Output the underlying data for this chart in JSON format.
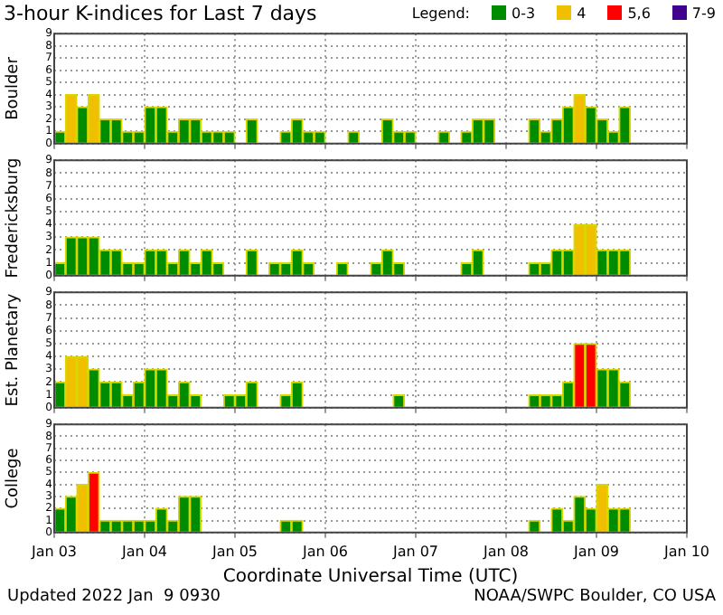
{
  "chart_data": [
    {
      "type": "bar",
      "title": "3-hour K-indices for Last 7 days",
      "ylabel": "Boulder",
      "legend": "top right",
      "legend_title": "Legend:",
      "tick_labels": "y",
      "grid": true,
      "x": [
        "2022-01-03T01:30",
        "2022-01-03T04:30",
        "2022-01-03T07:30",
        "2022-01-03T10:30",
        "2022-01-03T13:30",
        "2022-01-03T16:30",
        "2022-01-03T19:30",
        "2022-01-03T22:30",
        "2022-01-04T01:30",
        "2022-01-04T04:30",
        "2022-01-04T07:30",
        "2022-01-04T10:30",
        "2022-01-04T13:30",
        "2022-01-04T16:30",
        "2022-01-04T19:30",
        "2022-01-04T22:30",
        "2022-01-05T01:30",
        "2022-01-05T04:30",
        "2022-01-05T07:30",
        "2022-01-05T10:30",
        "2022-01-05T13:30",
        "2022-01-05T16:30",
        "2022-01-05T19:30",
        "2022-01-05T22:30",
        "2022-01-06T01:30",
        "2022-01-06T04:30",
        "2022-01-06T07:30",
        "2022-01-06T10:30",
        "2022-01-06T13:30",
        "2022-01-06T16:30",
        "2022-01-06T19:30",
        "2022-01-06T22:30",
        "2022-01-07T01:30",
        "2022-01-07T04:30",
        "2022-01-07T07:30",
        "2022-01-07T10:30",
        "2022-01-07T13:30",
        "2022-01-07T16:30",
        "2022-01-07T19:30",
        "2022-01-07T22:30",
        "2022-01-08T01:30",
        "2022-01-08T04:30",
        "2022-01-08T07:30",
        "2022-01-08T10:30",
        "2022-01-08T13:30",
        "2022-01-08T16:30",
        "2022-01-08T19:30",
        "2022-01-08T22:30",
        "2022-01-09T01:30",
        "2022-01-09T04:30",
        "2022-01-09T07:30"
      ],
      "series": [
        {
          "name": "0-3",
          "color": "#008c00",
          "values": [
            1,
            null,
            3,
            null,
            2,
            2,
            1,
            1,
            3,
            3,
            1,
            2,
            2,
            1,
            1,
            1,
            0,
            2,
            0,
            0,
            1,
            2,
            1,
            1,
            0,
            0,
            1,
            0,
            0,
            2,
            1,
            1,
            0,
            0,
            1,
            0,
            1,
            2,
            2,
            0,
            0,
            0,
            2,
            1,
            2,
            3,
            null,
            3,
            2,
            1,
            3
          ]
        },
        {
          "name": "4",
          "color": "#f0c000",
          "x": [
            "2022-01-03T04:30",
            "2022-01-03T10:30",
            "2022-01-08T19:30"
          ],
          "values": [
            4,
            4,
            4
          ]
        },
        {
          "name": "5,6",
          "color": "#ff0000",
          "values": [
            null,
            null,
            null,
            null,
            null,
            null,
            null,
            null,
            null,
            null,
            null,
            null,
            null,
            null,
            null,
            null,
            null,
            null,
            null,
            null,
            null,
            null,
            null,
            null,
            null,
            null,
            null,
            null,
            null,
            null,
            null,
            null,
            null,
            null,
            null,
            null,
            null,
            null,
            null,
            null,
            null,
            null,
            null,
            null,
            null,
            null,
            null,
            null,
            null,
            null,
            null
          ]
        },
        {
          "name": "7-9",
          "color": "#400090",
          "values": [
            null,
            null,
            null,
            null,
            null,
            null,
            null,
            null,
            null,
            null,
            null,
            null,
            null,
            null,
            null,
            null,
            null,
            null,
            null,
            null,
            null,
            null,
            null,
            null,
            null,
            null,
            null,
            null,
            null,
            null,
            null,
            null,
            null,
            null,
            null,
            null,
            null,
            null,
            null,
            null,
            null,
            null,
            null,
            null,
            null,
            null,
            null,
            null,
            null,
            null,
            null
          ]
        }
      ],
      "xlim": [
        "2022-01-03T00:00",
        "2022-01-10T00:00"
      ],
      "xticks": [
        {
          "value": "2022-01-03T00:00",
          "label": null
        },
        {
          "value": "2022-01-04T00:00",
          "label": null
        },
        {
          "value": "2022-01-05T00:00",
          "label": null
        },
        {
          "value": "2022-01-06T00:00",
          "label": null
        },
        {
          "value": "2022-01-07T00:00",
          "label": null
        },
        {
          "value": "2022-01-08T00:00",
          "label": null
        },
        {
          "value": "2022-01-09T00:00",
          "label": null
        },
        {
          "value": "2022-01-10T00:00",
          "label": null
        }
      ],
      "ylim": [
        0,
        9
      ],
      "yticks": [
        0,
        1,
        2,
        3,
        4,
        5,
        6,
        7,
        8,
        9
      ]
    },
    {
      "type": "bar",
      "ylabel": "Fredericksburg",
      "tick_labels": "y",
      "grid": true,
      "x": [
        "2022-01-03T01:30",
        "2022-01-03T04:30",
        "2022-01-03T07:30",
        "2022-01-03T10:30",
        "2022-01-03T13:30",
        "2022-01-03T16:30",
        "2022-01-03T19:30",
        "2022-01-03T22:30",
        "2022-01-04T01:30",
        "2022-01-04T04:30",
        "2022-01-04T07:30",
        "2022-01-04T10:30",
        "2022-01-04T13:30",
        "2022-01-04T16:30",
        "2022-01-04T19:30",
        "2022-01-04T22:30",
        "2022-01-05T01:30",
        "2022-01-05T04:30",
        "2022-01-05T07:30",
        "2022-01-05T10:30",
        "2022-01-05T13:30",
        "2022-01-05T16:30",
        "2022-01-05T19:30",
        "2022-01-05T22:30",
        "2022-01-06T01:30",
        "2022-01-06T04:30",
        "2022-01-06T07:30",
        "2022-01-06T10:30",
        "2022-01-06T13:30",
        "2022-01-06T16:30",
        "2022-01-06T19:30",
        "2022-01-06T22:30",
        "2022-01-07T01:30",
        "2022-01-07T04:30",
        "2022-01-07T07:30",
        "2022-01-07T10:30",
        "2022-01-07T13:30",
        "2022-01-07T16:30",
        "2022-01-07T19:30",
        "2022-01-07T22:30",
        "2022-01-08T01:30",
        "2022-01-08T04:30",
        "2022-01-08T07:30",
        "2022-01-08T10:30",
        "2022-01-08T13:30",
        "2022-01-08T16:30",
        "2022-01-08T19:30",
        "2022-01-08T22:30",
        "2022-01-09T01:30",
        "2022-01-09T04:30",
        "2022-01-09T07:30"
      ],
      "series": [
        {
          "color": "#008c00",
          "values": [
            1,
            3,
            3,
            3,
            2,
            2,
            1,
            1,
            2,
            2,
            1,
            2,
            1,
            2,
            1,
            0,
            0,
            2,
            0,
            1,
            1,
            2,
            1,
            0,
            0,
            1,
            0,
            0,
            1,
            2,
            1,
            0,
            0,
            0,
            0,
            0,
            1,
            2,
            0,
            0,
            0,
            0,
            1,
            1,
            2,
            2,
            null,
            null,
            2,
            2,
            2
          ]
        },
        {
          "color": "#f0c000",
          "x": [
            "2022-01-08T19:30",
            "2022-01-08T22:30"
          ],
          "values": [
            4,
            4
          ]
        }
      ],
      "xlim": [
        "2022-01-03T00:00",
        "2022-01-10T00:00"
      ],
      "xticks": [
        {
          "value": "2022-01-03T00:00",
          "label": null
        },
        {
          "value": "2022-01-04T00:00",
          "label": null
        },
        {
          "value": "2022-01-05T00:00",
          "label": null
        },
        {
          "value": "2022-01-06T00:00",
          "label": null
        },
        {
          "value": "2022-01-07T00:00",
          "label": null
        },
        {
          "value": "2022-01-08T00:00",
          "label": null
        },
        {
          "value": "2022-01-09T00:00",
          "label": null
        },
        {
          "value": "2022-01-10T00:00",
          "label": null
        }
      ],
      "ylim": [
        0,
        9
      ],
      "yticks": [
        0,
        1,
        2,
        3,
        4,
        5,
        6,
        7,
        8,
        9
      ]
    },
    {
      "type": "bar",
      "ylabel": "Est. Planetary",
      "tick_labels": "y",
      "grid": true,
      "x": [
        "2022-01-03T01:30",
        "2022-01-03T04:30",
        "2022-01-03T07:30",
        "2022-01-03T10:30",
        "2022-01-03T13:30",
        "2022-01-03T16:30",
        "2022-01-03T19:30",
        "2022-01-03T22:30",
        "2022-01-04T01:30",
        "2022-01-04T04:30",
        "2022-01-04T07:30",
        "2022-01-04T10:30",
        "2022-01-04T13:30",
        "2022-01-04T16:30",
        "2022-01-04T19:30",
        "2022-01-04T22:30",
        "2022-01-05T01:30",
        "2022-01-05T04:30",
        "2022-01-05T07:30",
        "2022-01-05T10:30",
        "2022-01-05T13:30",
        "2022-01-05T16:30",
        "2022-01-05T19:30",
        "2022-01-05T22:30",
        "2022-01-06T01:30",
        "2022-01-06T04:30",
        "2022-01-06T07:30",
        "2022-01-06T10:30",
        "2022-01-06T13:30",
        "2022-01-06T16:30",
        "2022-01-06T19:30",
        "2022-01-06T22:30",
        "2022-01-07T01:30",
        "2022-01-07T04:30",
        "2022-01-07T07:30",
        "2022-01-07T10:30",
        "2022-01-07T13:30",
        "2022-01-07T16:30",
        "2022-01-07T19:30",
        "2022-01-07T22:30",
        "2022-01-08T01:30",
        "2022-01-08T04:30",
        "2022-01-08T07:30",
        "2022-01-08T10:30",
        "2022-01-08T13:30",
        "2022-01-08T16:30",
        "2022-01-08T19:30",
        "2022-01-08T22:30",
        "2022-01-09T01:30",
        "2022-01-09T04:30",
        "2022-01-09T07:30"
      ],
      "series": [
        {
          "color": "#008c00",
          "values": [
            2,
            null,
            null,
            3,
            2,
            2,
            1,
            2,
            3,
            3,
            1,
            2,
            1,
            0,
            0,
            1,
            1,
            2,
            0,
            0,
            1,
            2,
            0,
            0,
            0,
            0,
            0,
            0,
            0,
            0,
            1,
            0,
            0,
            0,
            0,
            0,
            0,
            0,
            0,
            0,
            0,
            0,
            1,
            1,
            1,
            2,
            null,
            null,
            3,
            3,
            2
          ]
        },
        {
          "color": "#f0c000",
          "x": [
            "2022-01-03T04:30",
            "2022-01-03T07:30"
          ],
          "values": [
            4,
            4
          ]
        },
        {
          "color": "#ff0000",
          "x": [
            "2022-01-08T19:30",
            "2022-01-08T22:30"
          ],
          "values": [
            5,
            5
          ]
        }
      ],
      "xlim": [
        "2022-01-03T00:00",
        "2022-01-10T00:00"
      ],
      "xticks": [
        {
          "value": "2022-01-03T00:00",
          "label": null
        },
        {
          "value": "2022-01-04T00:00",
          "label": null
        },
        {
          "value": "2022-01-05T00:00",
          "label": null
        },
        {
          "value": "2022-01-06T00:00",
          "label": null
        },
        {
          "value": "2022-01-07T00:00",
          "label": null
        },
        {
          "value": "2022-01-08T00:00",
          "label": null
        },
        {
          "value": "2022-01-09T00:00",
          "label": null
        },
        {
          "value": "2022-01-10T00:00",
          "label": null
        }
      ],
      "ylim": [
        0,
        9
      ],
      "yticks": [
        0,
        1,
        2,
        3,
        4,
        5,
        6,
        7,
        8,
        9
      ]
    },
    {
      "type": "bar",
      "ylabel": "College",
      "xlabel": "Coordinate Universal Time (UTC)",
      "grid": true,
      "x": [
        "2022-01-03T01:30",
        "2022-01-03T04:30",
        "2022-01-03T07:30",
        "2022-01-03T10:30",
        "2022-01-03T13:30",
        "2022-01-03T16:30",
        "2022-01-03T19:30",
        "2022-01-03T22:30",
        "2022-01-04T01:30",
        "2022-01-04T04:30",
        "2022-01-04T07:30",
        "2022-01-04T10:30",
        "2022-01-04T13:30",
        "2022-01-04T16:30",
        "2022-01-04T19:30",
        "2022-01-04T22:30",
        "2022-01-05T01:30",
        "2022-01-05T04:30",
        "2022-01-05T07:30",
        "2022-01-05T10:30",
        "2022-01-05T13:30",
        "2022-01-05T16:30",
        "2022-01-05T19:30",
        "2022-01-05T22:30",
        "2022-01-06T01:30",
        "2022-01-06T04:30",
        "2022-01-06T07:30",
        "2022-01-06T10:30",
        "2022-01-06T13:30",
        "2022-01-06T16:30",
        "2022-01-06T19:30",
        "2022-01-06T22:30",
        "2022-01-07T01:30",
        "2022-01-07T04:30",
        "2022-01-07T07:30",
        "2022-01-07T10:30",
        "2022-01-07T13:30",
        "2022-01-07T16:30",
        "2022-01-07T19:30",
        "2022-01-07T22:30",
        "2022-01-08T01:30",
        "2022-01-08T04:30",
        "2022-01-08T07:30",
        "2022-01-08T10:30",
        "2022-01-08T13:30",
        "2022-01-08T16:30",
        "2022-01-08T19:30",
        "2022-01-08T22:30",
        "2022-01-09T01:30",
        "2022-01-09T04:30",
        "2022-01-09T07:30"
      ],
      "series": [
        {
          "color": "#008c00",
          "values": [
            2,
            3,
            null,
            null,
            1,
            1,
            1,
            1,
            1,
            2,
            1,
            3,
            3,
            0,
            0,
            0,
            0,
            0,
            0,
            0,
            1,
            1,
            0,
            0,
            0,
            0,
            0,
            0,
            0,
            0,
            0,
            0,
            0,
            0,
            0,
            0,
            0,
            0,
            0,
            0,
            0,
            0,
            1,
            0,
            2,
            1,
            3,
            2,
            null,
            2,
            2
          ]
        },
        {
          "color": "#f0c000",
          "x": [
            "2022-01-03T07:30",
            "2022-01-09T01:30"
          ],
          "values": [
            4,
            4
          ]
        },
        {
          "color": "#ff0000",
          "x": [
            "2022-01-03T10:30"
          ],
          "values": [
            5
          ]
        }
      ],
      "xlim": [
        "2022-01-03T00:00",
        "2022-01-10T00:00"
      ],
      "xticks": [
        {
          "value": "2022-01-03T00:00",
          "label": "Jan 03"
        },
        {
          "value": "2022-01-04T00:00",
          "label": "Jan 04"
        },
        {
          "value": "2022-01-05T00:00",
          "label": "Jan 05"
        },
        {
          "value": "2022-01-06T00:00",
          "label": "Jan 06"
        },
        {
          "value": "2022-01-07T00:00",
          "label": "Jan 07"
        },
        {
          "value": "2022-01-08T00:00",
          "label": "Jan 08"
        },
        {
          "value": "2022-01-09T00:00",
          "label": "Jan 09"
        },
        {
          "value": "2022-01-10T00:00",
          "label": "Jan 10"
        }
      ],
      "ylim": [
        0,
        9
      ],
      "yticks": [
        0,
        1,
        2,
        3,
        4,
        5,
        6,
        7,
        8,
        9
      ],
      "annotations": [
        "Updated 2022 Jan  9 0930",
        "NOAA/SWPC Boulder, CO USA"
      ]
    }
  ]
}
